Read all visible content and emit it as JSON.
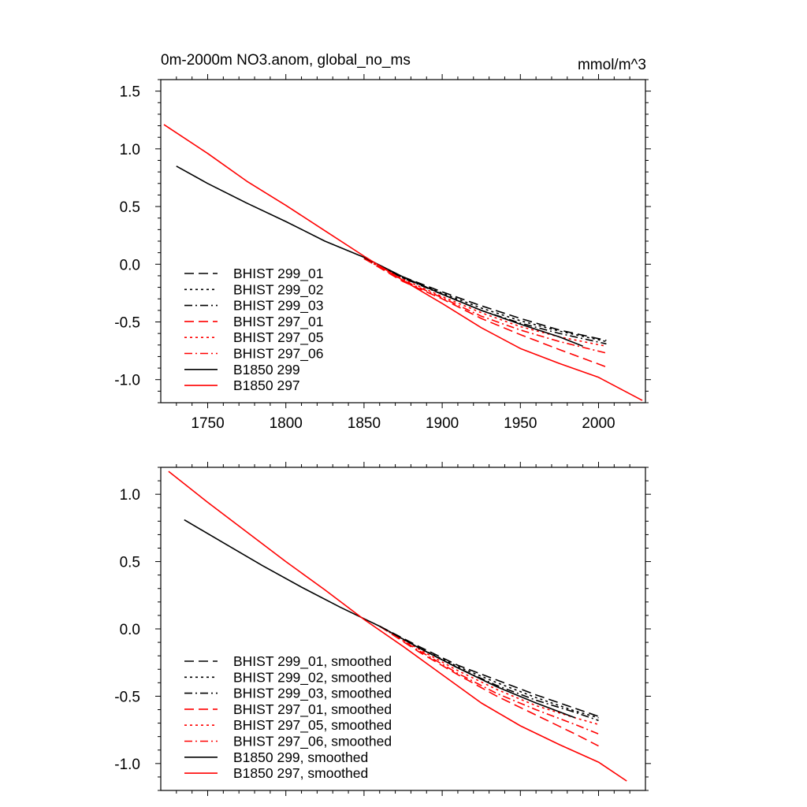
{
  "figure": {
    "title": "0m-2000m NO3.anom, global_no_ms",
    "units": "mmol/m^3"
  },
  "chart_data": [
    {
      "type": "line",
      "panel": "top",
      "title": "0m-2000m NO3.anom, global_no_ms",
      "units_label": "mmol/m^3",
      "xlim": [
        1720,
        2030
      ],
      "ylim": [
        -1.2,
        1.6
      ],
      "xticks": [
        1750,
        1800,
        1850,
        1900,
        1950,
        2000
      ],
      "xticklabels": [
        "1750",
        "1800",
        "1850",
        "1900",
        "1950",
        "2000"
      ],
      "yticks": [
        1.5,
        1.0,
        0.5,
        0.0,
        -0.5,
        -1.0
      ],
      "yticklabels": [
        "1.5",
        "1.0",
        "0.5",
        "0.0",
        "-0.5",
        "-1.0"
      ],
      "legend_position": "lower-left",
      "series": [
        {
          "name": "BHIST 299_01",
          "color": "#000000",
          "dash": "dashed",
          "x": [
            1850,
            1875,
            1900,
            1925,
            1950,
            1975,
            2005
          ],
          "y": [
            0.05,
            -0.11,
            -0.24,
            -0.36,
            -0.47,
            -0.57,
            -0.66
          ]
        },
        {
          "name": "BHIST 299_02",
          "color": "#000000",
          "dash": "dotted",
          "x": [
            1850,
            1875,
            1900,
            1925,
            1950,
            1975,
            2005
          ],
          "y": [
            0.05,
            -0.12,
            -0.25,
            -0.38,
            -0.49,
            -0.58,
            -0.67
          ]
        },
        {
          "name": "BHIST 299_03",
          "color": "#000000",
          "dash": "dashdot",
          "x": [
            1850,
            1875,
            1900,
            1925,
            1950,
            1975,
            2005
          ],
          "y": [
            0.05,
            -0.12,
            -0.26,
            -0.4,
            -0.51,
            -0.6,
            -0.69
          ]
        },
        {
          "name": "BHIST 297_01",
          "color": "#ff0000",
          "dash": "dashed",
          "x": [
            1850,
            1875,
            1900,
            1925,
            1950,
            1975,
            2005
          ],
          "y": [
            0.05,
            -0.15,
            -0.3,
            -0.47,
            -0.61,
            -0.74,
            -0.89
          ]
        },
        {
          "name": "BHIST 297_05",
          "color": "#ff0000",
          "dash": "dotted",
          "x": [
            1850,
            1875,
            1900,
            1925,
            1950,
            1975,
            2005
          ],
          "y": [
            0.05,
            -0.13,
            -0.28,
            -0.42,
            -0.54,
            -0.63,
            -0.71
          ]
        },
        {
          "name": "BHIST 297_06",
          "color": "#ff0000",
          "dash": "dashdot",
          "x": [
            1850,
            1875,
            1900,
            1925,
            1950,
            1975,
            2005
          ],
          "y": [
            0.05,
            -0.14,
            -0.29,
            -0.45,
            -0.57,
            -0.67,
            -0.77
          ]
        },
        {
          "name": "B1850 299",
          "color": "#000000",
          "dash": "solid",
          "x": [
            1730,
            1750,
            1775,
            1800,
            1825,
            1850,
            1875,
            1900,
            1925,
            1950,
            1975,
            1990
          ],
          "y": [
            0.85,
            0.7,
            0.53,
            0.37,
            0.2,
            0.06,
            -0.11,
            -0.26,
            -0.4,
            -0.52,
            -0.63,
            -0.71
          ]
        },
        {
          "name": "B1850 297",
          "color": "#ff0000",
          "dash": "solid",
          "x": [
            1722,
            1750,
            1775,
            1800,
            1825,
            1850,
            1875,
            1900,
            1925,
            1950,
            1975,
            2000,
            2028
          ],
          "y": [
            1.21,
            0.96,
            0.72,
            0.51,
            0.29,
            0.07,
            -0.14,
            -0.34,
            -0.55,
            -0.73,
            -0.86,
            -0.98,
            -1.18
          ]
        }
      ]
    },
    {
      "type": "line",
      "panel": "bottom",
      "xlim": [
        1720,
        2030
      ],
      "ylim": [
        -1.2,
        1.2
      ],
      "yticks": [
        1.0,
        0.5,
        0.0,
        -0.5,
        -1.0
      ],
      "yticklabels": [
        "1.0",
        "0.5",
        "0.0",
        "-0.5",
        "-1.0"
      ],
      "legend_position": "lower-left",
      "series": [
        {
          "name": "BHIST 299_01, smoothed",
          "color": "#000000",
          "dash": "dashed",
          "x": [
            1860,
            1885,
            1910,
            1935,
            1960,
            1985,
            2000
          ],
          "y": [
            0.02,
            -0.13,
            -0.27,
            -0.38,
            -0.49,
            -0.59,
            -0.65
          ]
        },
        {
          "name": "BHIST 299_02, smoothed",
          "color": "#000000",
          "dash": "dotted",
          "x": [
            1860,
            1885,
            1910,
            1935,
            1960,
            1985,
            2000
          ],
          "y": [
            0.02,
            -0.14,
            -0.28,
            -0.4,
            -0.51,
            -0.61,
            -0.66
          ]
        },
        {
          "name": "BHIST 299_03, smoothed",
          "color": "#000000",
          "dash": "dashdot",
          "x": [
            1860,
            1885,
            1910,
            1935,
            1960,
            1985,
            2000
          ],
          "y": [
            0.02,
            -0.14,
            -0.29,
            -0.42,
            -0.53,
            -0.62,
            -0.68
          ]
        },
        {
          "name": "BHIST 297_01, smoothed",
          "color": "#ff0000",
          "dash": "dashed",
          "x": [
            1860,
            1885,
            1910,
            1935,
            1960,
            1985,
            2000
          ],
          "y": [
            0.02,
            -0.17,
            -0.34,
            -0.5,
            -0.64,
            -0.78,
            -0.87
          ]
        },
        {
          "name": "BHIST 297_05, smoothed",
          "color": "#ff0000",
          "dash": "dotted",
          "x": [
            1860,
            1885,
            1910,
            1935,
            1960,
            1985,
            2000
          ],
          "y": [
            0.02,
            -0.15,
            -0.31,
            -0.45,
            -0.57,
            -0.66,
            -0.71
          ]
        },
        {
          "name": "BHIST 297_06, smoothed",
          "color": "#ff0000",
          "dash": "dashdot",
          "x": [
            1860,
            1885,
            1910,
            1935,
            1960,
            1985,
            2000
          ],
          "y": [
            0.02,
            -0.16,
            -0.33,
            -0.48,
            -0.6,
            -0.71,
            -0.78
          ]
        },
        {
          "name": "B1850 299, smoothed",
          "color": "#000000",
          "dash": "solid",
          "x": [
            1735,
            1760,
            1785,
            1810,
            1835,
            1860,
            1885,
            1910,
            1935,
            1960,
            1985
          ],
          "y": [
            0.81,
            0.64,
            0.47,
            0.31,
            0.16,
            0.02,
            -0.14,
            -0.29,
            -0.43,
            -0.55,
            -0.66
          ]
        },
        {
          "name": "B1850 297, smoothed",
          "color": "#ff0000",
          "dash": "solid",
          "x": [
            1725,
            1750,
            1775,
            1800,
            1825,
            1850,
            1875,
            1900,
            1925,
            1950,
            1975,
            2000,
            2018
          ],
          "y": [
            1.17,
            0.94,
            0.72,
            0.5,
            0.29,
            0.07,
            -0.13,
            -0.34,
            -0.55,
            -0.72,
            -0.86,
            -0.99,
            -1.13
          ]
        }
      ]
    }
  ]
}
